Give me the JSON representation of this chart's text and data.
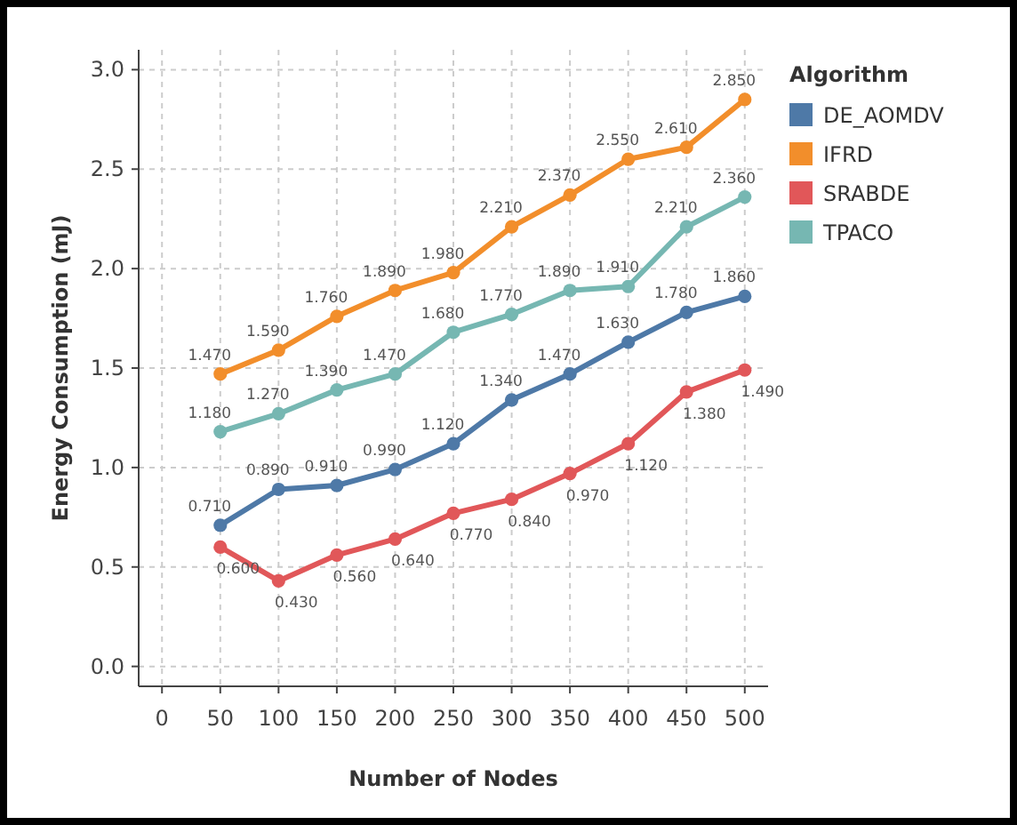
{
  "chart_data": {
    "type": "line",
    "xlabel": "Number of Nodes",
    "ylabel": "Energy Consumption (mJ)",
    "legend_title": "Algorithm",
    "legend": "right",
    "grid": true,
    "marker": "circle",
    "line_style": "solid",
    "x": [
      50,
      100,
      150,
      200,
      250,
      300,
      350,
      400,
      450,
      500
    ],
    "xlim": [
      -20,
      520
    ],
    "xticks": [
      0,
      50,
      100,
      150,
      200,
      250,
      300,
      350,
      400,
      450,
      500
    ],
    "ylim": [
      -0.1,
      3.1
    ],
    "yticks": [
      {
        "value": 0,
        "label": "0.0"
      },
      0.5,
      {
        "value": 1,
        "label": "1.0"
      },
      1.5,
      {
        "value": 2,
        "label": "2.0"
      },
      2.5,
      {
        "value": 3,
        "label": "3.0"
      }
    ],
    "series": [
      {
        "name": "DE_AOMDV",
        "color": "#4e79a7",
        "values": [
          0.71,
          0.89,
          0.91,
          0.99,
          1.12,
          1.34,
          1.47,
          1.63,
          1.78,
          1.86
        ],
        "value_labels": [
          "0.710",
          "0.890",
          "0.910",
          "0.990",
          "1.120",
          "1.340",
          "1.470",
          "1.630",
          "1.780",
          "1.860"
        ]
      },
      {
        "name": "IFRD",
        "color": "#f28e2b",
        "values": [
          1.47,
          1.59,
          1.76,
          1.89,
          1.98,
          2.21,
          2.37,
          2.55,
          2.61,
          2.85
        ],
        "value_labels": [
          "1.470",
          "1.590",
          "1.760",
          "1.890",
          "1.980",
          "2.210",
          "2.370",
          "2.550",
          "2.610",
          "2.850"
        ]
      },
      {
        "name": "SRABDE",
        "color": "#e15759",
        "values": [
          0.6,
          0.43,
          0.56,
          0.64,
          0.77,
          0.84,
          0.97,
          1.12,
          1.38,
          1.49
        ],
        "value_labels": [
          "0.600",
          "0.430",
          "0.560",
          "0.640",
          "0.770",
          "0.840",
          "0.970",
          "1.120",
          "1.380",
          "1.490"
        ]
      },
      {
        "name": "TPACO",
        "color": "#76b7b2",
        "values": [
          1.18,
          1.27,
          1.39,
          1.47,
          1.68,
          1.77,
          1.89,
          1.91,
          2.21,
          2.36
        ],
        "value_labels": [
          "1.180",
          "1.270",
          "1.390",
          "1.470",
          "1.680",
          "1.770",
          "1.890",
          "1.910",
          "2.210",
          "2.360"
        ]
      }
    ]
  }
}
